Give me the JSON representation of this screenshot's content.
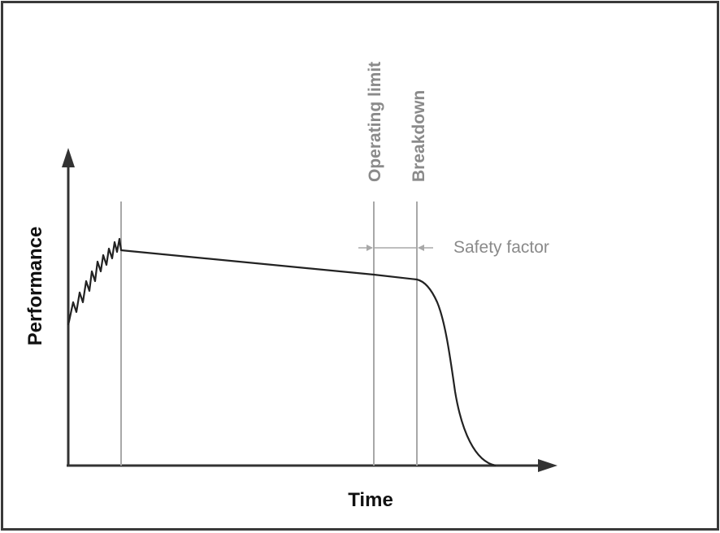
{
  "diagram": {
    "x_axis_label": "Time",
    "y_axis_label": "Performance",
    "markers": {
      "operating_limit": "Operating limit",
      "breakdown": "Breakdown"
    },
    "annotation": {
      "safety_factor": "Safety factor"
    },
    "colors": {
      "axis": "#333333",
      "curve": "#222222",
      "marker_lines": "#a8a8a8",
      "marker_text": "#8a8a8a",
      "frame": "#3a3a3a"
    }
  }
}
